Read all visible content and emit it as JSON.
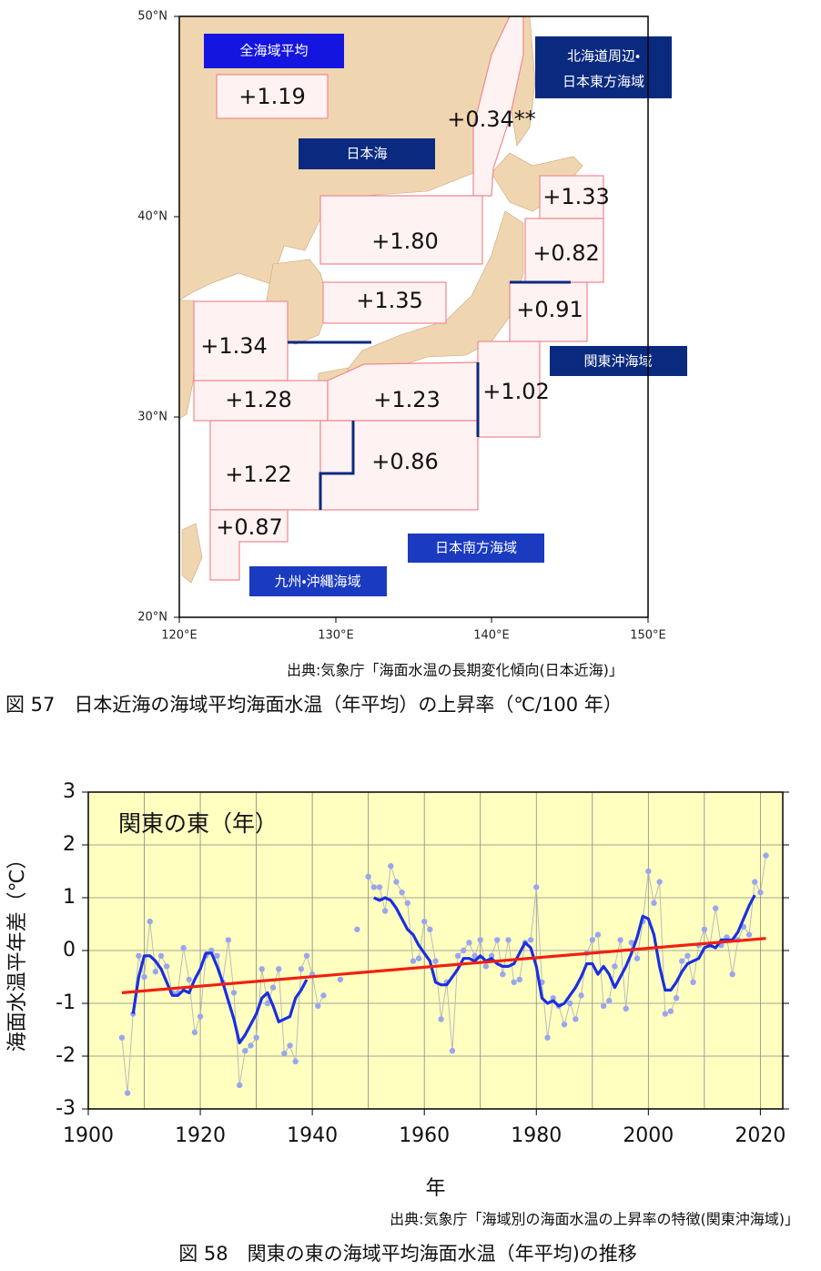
{
  "map": {
    "lon_ticks": [
      "120°E",
      "130°E",
      "140°E",
      "150°E"
    ],
    "lat_ticks": [
      "20°N",
      "30°N",
      "40°N",
      "50°N"
    ],
    "areas": [
      "全海域平均",
      "日本海",
      "北海道周辺・",
      "日本東方海域",
      "関東沖海域",
      "日本南方海域",
      "九州・沖縄海域"
    ],
    "regions": [
      "+1.19",
      "+0.34**",
      "+1.33",
      "+1.80",
      "+0.82",
      "+1.35",
      "+0.91",
      "+1.34",
      "+1.28",
      "+1.23",
      "+1.02",
      "+1.22",
      "+0.86",
      "+0.87"
    ]
  },
  "source_1": "出典:気象庁「海面水温の長期変化傾向(日本近海)」",
  "caption_1": "図 57　日本近海の海域平均海面水温（年平均）の上昇率（℃/100 年）",
  "chart_data": {
    "type": "line",
    "title": "関東の東（年）",
    "x_label": "年",
    "y_label": "海面水温平年差（℃）",
    "x": [
      1906,
      1907,
      1908,
      1909,
      1910,
      1911,
      1912,
      1913,
      1914,
      1915,
      1916,
      1917,
      1918,
      1919,
      1920,
      1921,
      1922,
      1923,
      1924,
      1925,
      1926,
      1927,
      1928,
      1929,
      1930,
      1931,
      1932,
      1933,
      1934,
      1935,
      1936,
      1937,
      1938,
      1939,
      1940,
      1941,
      1942,
      1943,
      1944,
      1945,
      1946,
      1947,
      1948,
      1949,
      1950,
      1951,
      1952,
      1953,
      1954,
      1955,
      1956,
      1957,
      1958,
      1959,
      1960,
      1961,
      1962,
      1963,
      1964,
      1965,
      1966,
      1967,
      1968,
      1969,
      1970,
      1971,
      1972,
      1973,
      1974,
      1975,
      1976,
      1977,
      1978,
      1979,
      1980,
      1981,
      1982,
      1983,
      1984,
      1985,
      1986,
      1987,
      1988,
      1989,
      1990,
      1991,
      1992,
      1993,
      1994,
      1995,
      1996,
      1997,
      1998,
      1999,
      2000,
      2001,
      2002,
      2003,
      2004,
      2005,
      2006,
      2007,
      2008,
      2009,
      2010,
      2011,
      2012,
      2013,
      2014,
      2015,
      2016,
      2017,
      2018,
      2019,
      2020,
      2021
    ],
    "series": [
      {
        "color": "#9aa6ee",
        "markers": true,
        "values": [
          -1.65,
          -2.7,
          -1.2,
          -0.1,
          -0.5,
          0.55,
          -0.4,
          -0.1,
          -0.3,
          -0.8,
          -0.8,
          0.05,
          -0.55,
          -1.55,
          -1.25,
          -0.1,
          0.0,
          -0.1,
          -0.6,
          0.2,
          -0.8,
          -2.55,
          -1.9,
          -1.8,
          -1.65,
          -0.35,
          -1.0,
          -0.7,
          -0.35,
          -1.95,
          -1.8,
          -2.1,
          -0.35,
          -0.1,
          -0.45,
          -1.05,
          -0.85,
          null,
          null,
          -0.55,
          null,
          null,
          0.4,
          null,
          1.4,
          1.2,
          1.2,
          0.75,
          1.6,
          1.3,
          1.1,
          0.9,
          -0.2,
          -0.15,
          0.55,
          0.4,
          -0.2,
          -1.3,
          -0.6,
          -1.9,
          -0.1,
          0.0,
          0.15,
          -0.1,
          0.2,
          -0.3,
          -0.1,
          0.2,
          -0.45,
          0.2,
          -0.6,
          -0.55,
          0.15,
          0.2,
          1.2,
          -0.6,
          -1.65,
          -0.9,
          -1.05,
          -1.4,
          -1.0,
          -1.3,
          -0.85,
          -0.05,
          0.2,
          0.3,
          -1.05,
          -0.95,
          -0.3,
          0.2,
          -1.1,
          0.15,
          -0.15,
          0.55,
          1.5,
          0.9,
          1.3,
          -1.2,
          -1.15,
          -0.9,
          -0.2,
          -0.1,
          -0.6,
          0.1,
          0.4,
          0.1,
          0.8,
          0.1,
          0.25,
          -0.45,
          0.2,
          0.45,
          0.3,
          1.3,
          1.1,
          1.8
        ]
      },
      {
        "color": "#1a2fe0",
        "values": [
          null,
          null,
          -1.2,
          -0.5,
          -0.1,
          -0.1,
          -0.2,
          -0.35,
          -0.6,
          -0.85,
          -0.85,
          -0.75,
          -0.8,
          -0.55,
          -0.35,
          -0.05,
          -0.05,
          -0.3,
          -0.6,
          -0.95,
          -1.3,
          -1.75,
          -1.6,
          -1.4,
          -1.2,
          -0.9,
          -0.8,
          -1.05,
          -1.35,
          -1.3,
          -1.25,
          -0.9,
          -0.75,
          -0.55,
          null,
          null,
          null,
          null,
          null,
          null,
          null,
          null,
          null,
          null,
          null,
          1.0,
          0.95,
          1.0,
          0.95,
          0.8,
          0.6,
          0.4,
          0.3,
          0.1,
          -0.05,
          -0.2,
          -0.6,
          -0.65,
          -0.65,
          -0.5,
          -0.35,
          -0.15,
          -0.15,
          -0.2,
          -0.1,
          -0.2,
          -0.15,
          -0.25,
          -0.3,
          -0.3,
          -0.25,
          -0.05,
          0.15,
          0.05,
          -0.3,
          -0.9,
          -1.0,
          -0.95,
          -1.05,
          -1.0,
          -0.85,
          -0.7,
          -0.5,
          -0.25,
          -0.25,
          -0.45,
          -0.3,
          -0.45,
          -0.7,
          -0.5,
          -0.3,
          -0.05,
          0.25,
          0.65,
          0.6,
          0.3,
          -0.3,
          -0.75,
          -0.75,
          -0.6,
          -0.4,
          -0.25,
          -0.2,
          -0.15,
          0.05,
          0.1,
          0.05,
          0.2,
          0.2,
          0.2,
          0.35,
          0.6,
          0.85,
          1.05,
          null,
          null
        ]
      },
      {
        "color": "#f02010",
        "x": [
          1906,
          2021
        ],
        "values": [
          -0.8,
          0.23
        ]
      }
    ],
    "xlim": [
      1900,
      2024
    ],
    "ylim": [
      -3,
      3
    ],
    "xticks": [
      1900,
      1920,
      1940,
      1960,
      1980,
      2000,
      2020
    ],
    "x_grid": [
      1900,
      1910,
      1920,
      1930,
      1940,
      1950,
      1960,
      1970,
      1980,
      1990,
      2000,
      2010,
      2020
    ],
    "yticks": [
      -3,
      -2,
      -1,
      0,
      1,
      2,
      3
    ],
    "grid": true,
    "background": "#ffffc0"
  },
  "source_2": "出典:気象庁「海域別の海面水温の上昇率の特徴(関東沖海域)」",
  "caption_2": "図 58　関東の東の海域平均海面水温（年平均)の推移"
}
